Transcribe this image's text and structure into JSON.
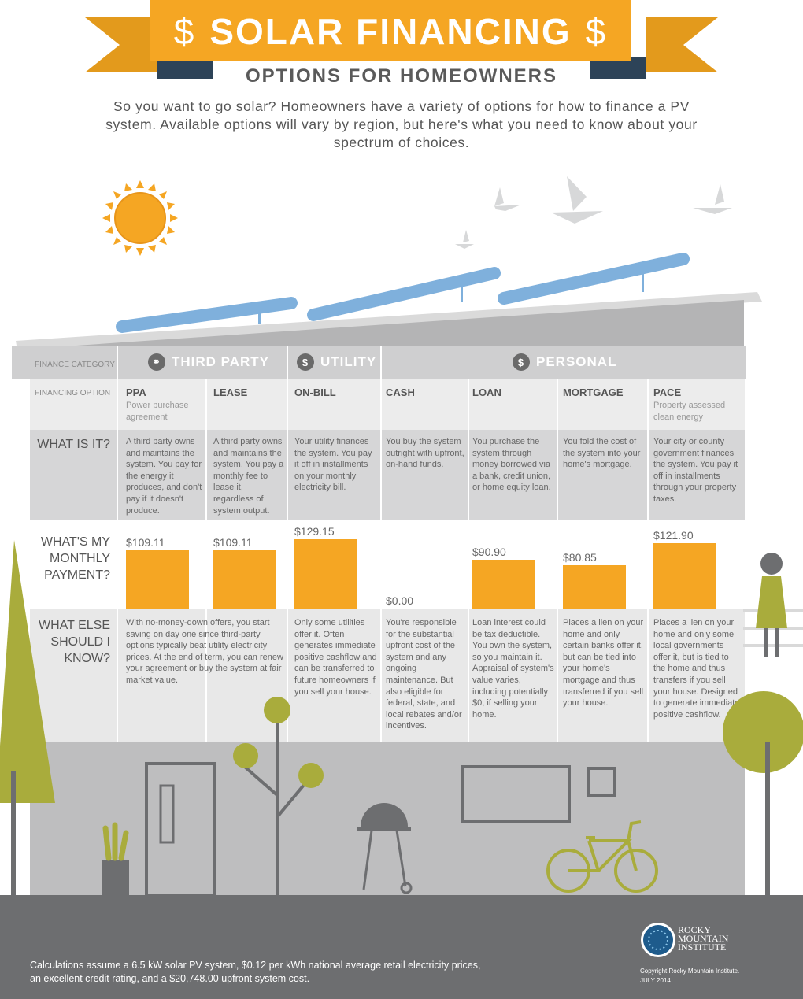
{
  "header": {
    "title": "SOLAR FINANCING",
    "dollar_left": "$",
    "dollar_right": "$",
    "subtitle": "OPTIONS FOR HOMEOWNERS",
    "intro": "So you want to go solar? Homeowners have a variety of options for how to finance a PV system. Available options will vary by region, but here's what you need to know about your spectrum of choices."
  },
  "row_labels": {
    "finance_category": "FINANCE CATEGORY",
    "financing_option": "FINANCING OPTION",
    "what_is_it": "WHAT IS IT?",
    "monthly_payment": "WHAT'S MY MONTHLY PAYMENT?",
    "what_else": "WHAT ELSE SHOULD I KNOW?"
  },
  "categories": [
    {
      "label": "THIRD PARTY",
      "icon": "link-icon"
    },
    {
      "label": "UTILITY",
      "icon": "lightbulb-dollar-icon"
    },
    {
      "label": "PERSONAL",
      "icon": "piggy-bank-icon"
    }
  ],
  "options": [
    {
      "name": "PPA",
      "sub": "Power purchase agreement",
      "what": "A third party owns and maintains the system. You pay for the energy it produces, and don't pay if it doesn't produce.",
      "payment_label": "$109.11",
      "payment": 109.11,
      "know": "With no-money-down offers, you start saving on day one since third-party options typically beat utility electricity prices. At the end of term, you can renew your agreement or buy the system at fair market value."
    },
    {
      "name": "LEASE",
      "sub": "",
      "what": "A third party owns and maintains the system. You pay a monthly fee to lease it, regardless of system output.",
      "payment_label": "$109.11",
      "payment": 109.11,
      "know": ""
    },
    {
      "name": "ON-BILL",
      "sub": "",
      "what": "Your utility finances the system. You pay it off in installments on your monthly electricity bill.",
      "payment_label": "$129.15",
      "payment": 129.15,
      "know": "Only some utilities offer it. Often generates immediate positive cashflow and can be transferred to future homeowners if you sell your house."
    },
    {
      "name": "CASH",
      "sub": "",
      "what": "You buy the system outright with upfront, on-hand funds.",
      "payment_label": "$0.00",
      "payment": 0,
      "know": "You're responsible for the substantial upfront cost of the system and any ongoing maintenance. But also eligible for federal, state, and local rebates and/or incentives."
    },
    {
      "name": "LOAN",
      "sub": "",
      "what": "You purchase the system through money borrowed via a bank, credit union, or home equity loan.",
      "payment_label": "$90.90",
      "payment": 90.9,
      "know": "Loan interest could be tax deductible. You own the system, so you maintain it. Appraisal of system's value varies, including potentially $0, if selling your home."
    },
    {
      "name": "MORTGAGE",
      "sub": "",
      "what": "You fold the cost of the system into your home's mortgage.",
      "payment_label": "$80.85",
      "payment": 80.85,
      "know": "Places a lien on your home and only certain banks offer it, but can be tied into your home's mortgage and thus transferred if you sell your house."
    },
    {
      "name": "PACE",
      "sub": "Property assessed clean energy",
      "what": "Your city or county government finances the system. You pay it off in installments through your property taxes.",
      "payment_label": "$121.90",
      "payment": 121.9,
      "know": "Places a lien on your home and only some local governments offer it, but is tied to the home and thus transfers if you sell your house. Designed to generate immediate positive cashflow."
    }
  ],
  "footer": {
    "note_line1": "Calculations assume a 6.5 kW solar PV system, $0.12 per kWh national average retail electricity prices,",
    "note_line2": "an excellent credit rating, and a $20,748.00 upfront system cost.",
    "logo_line1": "ROCKY",
    "logo_line2": "MOUNTAIN",
    "logo_line3": "INSTITUTE",
    "copyright": "Copyright Rocky Mountain Institute.",
    "date": "JULY 2014"
  },
  "colors": {
    "accent": "#f5a623",
    "navy": "#2d4358",
    "panel": "#7fb0dc",
    "olive": "#a9ac3c",
    "gray": "#6d6e70"
  }
}
